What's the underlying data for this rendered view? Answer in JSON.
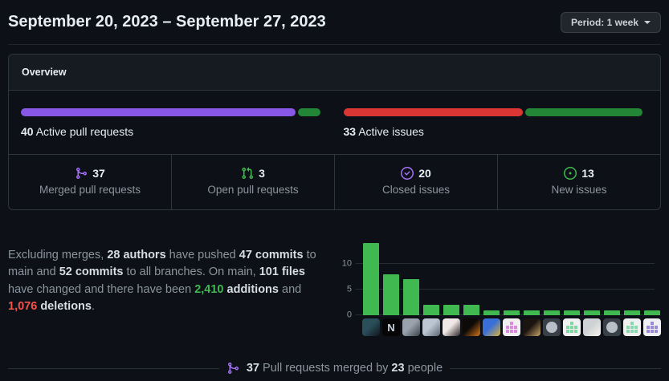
{
  "header": {
    "title": "September 20, 2023 – September 27, 2023",
    "period_button": {
      "label": "Period: 1 week"
    }
  },
  "overview": {
    "title": "Overview",
    "pull_requests": {
      "value": "40",
      "label": " Active pull requests",
      "segments": [
        {
          "name": "merged-pull-requests",
          "color": "#8957e5",
          "pct": 92.5
        },
        {
          "name": "open-pull-requests",
          "color": "#238636",
          "pct": 7.5
        }
      ]
    },
    "issues": {
      "value": "33",
      "label": " Active issues",
      "segments": [
        {
          "name": "closed-issues",
          "color": "#da3633",
          "pct": 60.6
        },
        {
          "name": "new-issues",
          "color": "#238636",
          "pct": 39.4
        }
      ]
    },
    "stats": [
      {
        "icon": "git-merge-icon",
        "icon_color": "#a371f7",
        "value": "37",
        "label": "Merged pull requests"
      },
      {
        "icon": "git-pull-request-icon",
        "icon_color": "#3fb950",
        "value": "3",
        "label": "Open pull requests"
      },
      {
        "icon": "issue-closed-icon",
        "icon_color": "#a371f7",
        "value": "20",
        "label": "Closed issues"
      },
      {
        "icon": "issue-opened-icon",
        "icon_color": "#3fb950",
        "value": "13",
        "label": "New issues"
      }
    ]
  },
  "summary_segments": [
    {
      "t": "Excluding merges, ",
      "s": "n"
    },
    {
      "t": "28 authors",
      "s": "b"
    },
    {
      "t": " have pushed ",
      "s": "n"
    },
    {
      "t": "47 commits",
      "s": "b"
    },
    {
      "t": " to main and ",
      "s": "n"
    },
    {
      "t": "52 commits",
      "s": "b"
    },
    {
      "t": " to all branches. On main, ",
      "s": "n"
    },
    {
      "t": "101 files",
      "s": "b"
    },
    {
      "t": " have changed and there have been ",
      "s": "n"
    },
    {
      "t": "2,410",
      "s": "add"
    },
    {
      "t": " ",
      "s": "n"
    },
    {
      "t": "additions",
      "s": "b"
    },
    {
      "t": " and ",
      "s": "n"
    },
    {
      "t": "1,076",
      "s": "del"
    },
    {
      "t": " ",
      "s": "n"
    },
    {
      "t": "deletions",
      "s": "b"
    },
    {
      "t": ".",
      "s": "n"
    }
  ],
  "chart_data": {
    "type": "bar",
    "title": "",
    "xlabel": "",
    "ylabel": "",
    "categories": [
      "author-1",
      "author-2",
      "author-3",
      "author-4",
      "author-5",
      "author-6",
      "author-7",
      "author-8",
      "author-9",
      "author-10",
      "author-11",
      "author-12",
      "author-13",
      "author-14",
      "author-15"
    ],
    "values": [
      14,
      8,
      7,
      2,
      2,
      2,
      1,
      1,
      1,
      1,
      1,
      1,
      1,
      1,
      1
    ],
    "yticks": [
      0,
      5,
      10
    ],
    "ylim": [
      0,
      15
    ],
    "grid": true,
    "legend": false,
    "bar_color": "#3fb950",
    "avatars": [
      {
        "kind": "photo",
        "c1": "#2a4f5a",
        "c2": "#10151b"
      },
      {
        "kind": "letter",
        "bg": "#060606",
        "fg": "#ccd4df",
        "text": "N"
      },
      {
        "kind": "photo",
        "c1": "#9aa3ad",
        "c2": "#3c4149"
      },
      {
        "kind": "photo",
        "c1": "#bcc6d2",
        "c2": "#5d6673"
      },
      {
        "kind": "photo",
        "c1": "#efe8e6",
        "c2": "#2b2326"
      },
      {
        "kind": "photo",
        "c1": "#0e0a07",
        "c2": "#d9761a"
      },
      {
        "kind": "photo",
        "c1": "#3a6fd8",
        "c2": "#d8b13a"
      },
      {
        "kind": "identicon",
        "bg": "#f0f0f0",
        "fg": "#dc8add"
      },
      {
        "kind": "photo",
        "c1": "#1c1410",
        "c2": "#caa76a"
      },
      {
        "kind": "octocat",
        "bg": "#394048",
        "fg": "#b8bfc6"
      },
      {
        "kind": "identicon",
        "bg": "#f0f0f0",
        "fg": "#7fd8a4"
      },
      {
        "kind": "photo",
        "c1": "#cfd2d4",
        "c2": "#f5f2ee"
      },
      {
        "kind": "octocat",
        "bg": "#394048",
        "fg": "#b8bfc6"
      },
      {
        "kind": "identicon",
        "bg": "#f0f0f0",
        "fg": "#8ad8b0"
      },
      {
        "kind": "identicon",
        "bg": "#eef0f4",
        "fg": "#9b8ad8"
      }
    ]
  },
  "footer_segments": [
    {
      "t": "37",
      "s": "b"
    },
    {
      "t": " Pull requests merged by ",
      "s": "n"
    },
    {
      "t": "23",
      "s": "b"
    },
    {
      "t": " people",
      "s": "n"
    }
  ],
  "footer_icon_color": "#a371f7"
}
